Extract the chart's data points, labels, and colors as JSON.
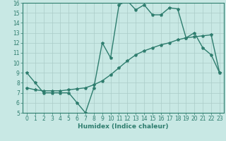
{
  "xlabel": "Humidex (Indice chaleur)",
  "xlim": [
    -0.5,
    23.5
  ],
  "ylim": [
    5,
    16
  ],
  "yticks": [
    5,
    6,
    7,
    8,
    9,
    10,
    11,
    12,
    13,
    14,
    15,
    16
  ],
  "xticks": [
    0,
    1,
    2,
    3,
    4,
    5,
    6,
    7,
    8,
    9,
    10,
    11,
    12,
    13,
    14,
    15,
    16,
    17,
    18,
    19,
    20,
    21,
    22,
    23
  ],
  "line_color": "#2e7d6e",
  "background_color": "#c8e8e4",
  "grid_color": "#aaccc8",
  "line1_x": [
    0,
    1,
    2,
    3,
    4,
    5,
    6,
    7,
    8,
    9,
    10,
    11,
    12,
    13,
    14,
    15,
    16,
    17,
    18,
    19,
    20,
    21,
    22,
    23
  ],
  "line1_y": [
    9.0,
    8.0,
    7.0,
    7.0,
    7.0,
    7.0,
    6.0,
    5.0,
    7.5,
    12.0,
    10.5,
    15.8,
    16.2,
    15.3,
    15.8,
    14.8,
    14.8,
    15.5,
    15.4,
    12.5,
    13.0,
    11.5,
    10.8,
    9.0
  ],
  "line2_x": [
    0,
    1,
    2,
    3,
    4,
    5,
    6,
    7,
    8,
    9,
    10,
    11,
    12,
    13,
    14,
    15,
    16,
    17,
    18,
    19,
    20,
    21,
    22,
    23
  ],
  "line2_y": [
    7.5,
    7.3,
    7.2,
    7.2,
    7.2,
    7.3,
    7.4,
    7.5,
    7.8,
    8.2,
    8.8,
    9.5,
    10.2,
    10.8,
    11.2,
    11.5,
    11.8,
    12.0,
    12.3,
    12.5,
    12.6,
    12.7,
    12.8,
    9.0
  ],
  "marker": "*",
  "markersize": 3.0,
  "linewidth": 1.0
}
